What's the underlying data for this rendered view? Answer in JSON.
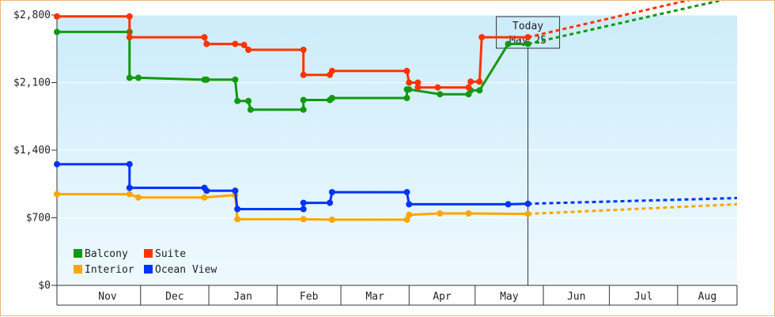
{
  "chart_data": {
    "type": "line",
    "y_ticks": [
      "$0",
      "$700",
      "$1,400",
      "$2,100",
      "$2,800"
    ],
    "y_tick_values": [
      0,
      700,
      1400,
      2100,
      2800
    ],
    "ylim": [
      0,
      2800
    ],
    "x_range": [
      "2023-10-24",
      "2024-08-28"
    ],
    "months": [
      {
        "label": "Nov",
        "start": "2023-11-01",
        "end": "2023-12-01"
      },
      {
        "label": "Dec",
        "start": "2023-12-01",
        "end": "2024-01-01"
      },
      {
        "label": "Jan",
        "start": "2024-01-01",
        "end": "2024-02-01"
      },
      {
        "label": "Feb",
        "start": "2024-02-01",
        "end": "2024-03-01"
      },
      {
        "label": "Mar",
        "start": "2024-03-01",
        "end": "2024-04-01"
      },
      {
        "label": "Apr",
        "start": "2024-04-01",
        "end": "2024-05-01"
      },
      {
        "label": "May",
        "start": "2024-05-01",
        "end": "2024-06-01"
      },
      {
        "label": "Jun",
        "start": "2024-06-01",
        "end": "2024-07-01"
      },
      {
        "label": "Jul",
        "start": "2024-07-01",
        "end": "2024-08-01"
      },
      {
        "label": "Aug",
        "start": "2024-08-01",
        "end": "2024-08-28"
      }
    ],
    "today": {
      "line1": "Today",
      "line2": "May 25",
      "date": "2024-05-25"
    },
    "legend": [
      {
        "label": "Balcony",
        "color": "#119911"
      },
      {
        "label": "Suite",
        "color": "#ff3300"
      },
      {
        "label": "Interior",
        "color": "#ffa500"
      },
      {
        "label": "Ocean View",
        "color": "#0033ff"
      }
    ],
    "series": [
      {
        "name": "Balcony",
        "color": "#119911",
        "points": [
          {
            "x": "2023-10-24",
            "y": 2625,
            "marker": true
          },
          {
            "x": "2023-11-26",
            "y": 2625,
            "marker": true
          },
          {
            "x": "2023-11-26",
            "y": 2150,
            "marker": true
          },
          {
            "x": "2023-11-30",
            "y": 2150,
            "marker": true
          },
          {
            "x": "2023-12-30",
            "y": 2130,
            "marker": true
          },
          {
            "x": "2023-12-31",
            "y": 2130,
            "marker": true
          },
          {
            "x": "2024-01-13",
            "y": 2130,
            "marker": true
          },
          {
            "x": "2024-01-14",
            "y": 1910,
            "marker": true
          },
          {
            "x": "2024-01-19",
            "y": 1910,
            "marker": true
          },
          {
            "x": "2024-01-20",
            "y": 1820,
            "marker": true
          },
          {
            "x": "2024-02-13",
            "y": 1820,
            "marker": true
          },
          {
            "x": "2024-02-13",
            "y": 1920,
            "marker": true
          },
          {
            "x": "2024-02-25",
            "y": 1920,
            "marker": true
          },
          {
            "x": "2024-02-26",
            "y": 1940,
            "marker": true
          },
          {
            "x": "2024-03-31",
            "y": 1940,
            "marker": true
          },
          {
            "x": "2024-03-31",
            "y": 2030,
            "marker": true
          },
          {
            "x": "2024-04-01",
            "y": 2030,
            "marker": true
          },
          {
            "x": "2024-04-15",
            "y": 1980,
            "marker": true
          },
          {
            "x": "2024-04-28",
            "y": 1980,
            "marker": true
          },
          {
            "x": "2024-04-29",
            "y": 2020,
            "marker": true
          },
          {
            "x": "2024-05-03",
            "y": 2020,
            "marker": true
          },
          {
            "x": "2024-05-16",
            "y": 2500,
            "marker": true
          },
          {
            "x": "2024-05-25",
            "y": 2500,
            "marker": true
          }
        ],
        "projection": [
          {
            "x": "2024-05-25",
            "y": 2500
          },
          {
            "x": "2024-08-28",
            "y": 2990
          }
        ]
      },
      {
        "name": "Suite",
        "color": "#ff3300",
        "points": [
          {
            "x": "2023-10-24",
            "y": 2785,
            "marker": true
          },
          {
            "x": "2023-11-26",
            "y": 2785,
            "marker": true
          },
          {
            "x": "2023-11-26",
            "y": 2570,
            "marker": true
          },
          {
            "x": "2023-12-30",
            "y": 2570,
            "marker": true
          },
          {
            "x": "2023-12-31",
            "y": 2500,
            "marker": true
          },
          {
            "x": "2024-01-13",
            "y": 2500,
            "marker": true
          },
          {
            "x": "2024-01-17",
            "y": 2490,
            "marker": true
          },
          {
            "x": "2024-01-19",
            "y": 2440,
            "marker": true
          },
          {
            "x": "2024-02-13",
            "y": 2440,
            "marker": true
          },
          {
            "x": "2024-02-13",
            "y": 2180,
            "marker": true
          },
          {
            "x": "2024-02-25",
            "y": 2180,
            "marker": true
          },
          {
            "x": "2024-02-26",
            "y": 2220,
            "marker": true
          },
          {
            "x": "2024-03-31",
            "y": 2220,
            "marker": true
          },
          {
            "x": "2024-04-01",
            "y": 2100,
            "marker": true
          },
          {
            "x": "2024-04-05",
            "y": 2100,
            "marker": true
          },
          {
            "x": "2024-04-05",
            "y": 2050,
            "marker": true
          },
          {
            "x": "2024-04-14",
            "y": 2050,
            "marker": true
          },
          {
            "x": "2024-04-28",
            "y": 2050,
            "marker": true
          },
          {
            "x": "2024-04-29",
            "y": 2110,
            "marker": true
          },
          {
            "x": "2024-05-03",
            "y": 2110,
            "marker": true
          },
          {
            "x": "2024-05-04",
            "y": 2570,
            "marker": true
          },
          {
            "x": "2024-05-25",
            "y": 2570,
            "marker": true
          }
        ],
        "projection": [
          {
            "x": "2024-05-25",
            "y": 2570
          },
          {
            "x": "2024-08-28",
            "y": 3070
          }
        ]
      },
      {
        "name": "Interior",
        "color": "#ffa500",
        "points": [
          {
            "x": "2023-10-24",
            "y": 945,
            "marker": true
          },
          {
            "x": "2023-11-26",
            "y": 945,
            "marker": true
          },
          {
            "x": "2023-11-30",
            "y": 910,
            "marker": true
          },
          {
            "x": "2023-12-30",
            "y": 910,
            "marker": true
          },
          {
            "x": "2024-01-13",
            "y": 935,
            "marker": true
          },
          {
            "x": "2024-01-14",
            "y": 685,
            "marker": true
          },
          {
            "x": "2024-02-13",
            "y": 685,
            "marker": true
          },
          {
            "x": "2024-02-26",
            "y": 680,
            "marker": true
          },
          {
            "x": "2024-03-31",
            "y": 680,
            "marker": true
          },
          {
            "x": "2024-04-01",
            "y": 730,
            "marker": true
          },
          {
            "x": "2024-04-15",
            "y": 745,
            "marker": true
          },
          {
            "x": "2024-04-28",
            "y": 745,
            "marker": true
          },
          {
            "x": "2024-05-25",
            "y": 740,
            "marker": true
          }
        ],
        "projection": [
          {
            "x": "2024-05-25",
            "y": 740
          },
          {
            "x": "2024-08-28",
            "y": 840
          }
        ]
      },
      {
        "name": "Ocean View",
        "color": "#0033ff",
        "points": [
          {
            "x": "2023-10-24",
            "y": 1255,
            "marker": true
          },
          {
            "x": "2023-11-26",
            "y": 1255,
            "marker": true
          },
          {
            "x": "2023-11-26",
            "y": 1010,
            "marker": true
          },
          {
            "x": "2023-12-30",
            "y": 1010,
            "marker": true
          },
          {
            "x": "2023-12-31",
            "y": 980,
            "marker": true
          },
          {
            "x": "2024-01-13",
            "y": 980,
            "marker": true
          },
          {
            "x": "2024-01-14",
            "y": 790,
            "marker": true
          },
          {
            "x": "2024-02-13",
            "y": 790,
            "marker": true
          },
          {
            "x": "2024-02-13",
            "y": 855,
            "marker": true
          },
          {
            "x": "2024-02-25",
            "y": 855,
            "marker": true
          },
          {
            "x": "2024-02-26",
            "y": 965,
            "marker": true
          },
          {
            "x": "2024-03-31",
            "y": 965,
            "marker": true
          },
          {
            "x": "2024-04-01",
            "y": 840,
            "marker": true
          },
          {
            "x": "2024-05-16",
            "y": 840,
            "marker": true
          },
          {
            "x": "2024-05-25",
            "y": 845,
            "marker": true
          }
        ],
        "projection": [
          {
            "x": "2024-05-25",
            "y": 845
          },
          {
            "x": "2024-08-28",
            "y": 905
          }
        ]
      }
    ]
  }
}
